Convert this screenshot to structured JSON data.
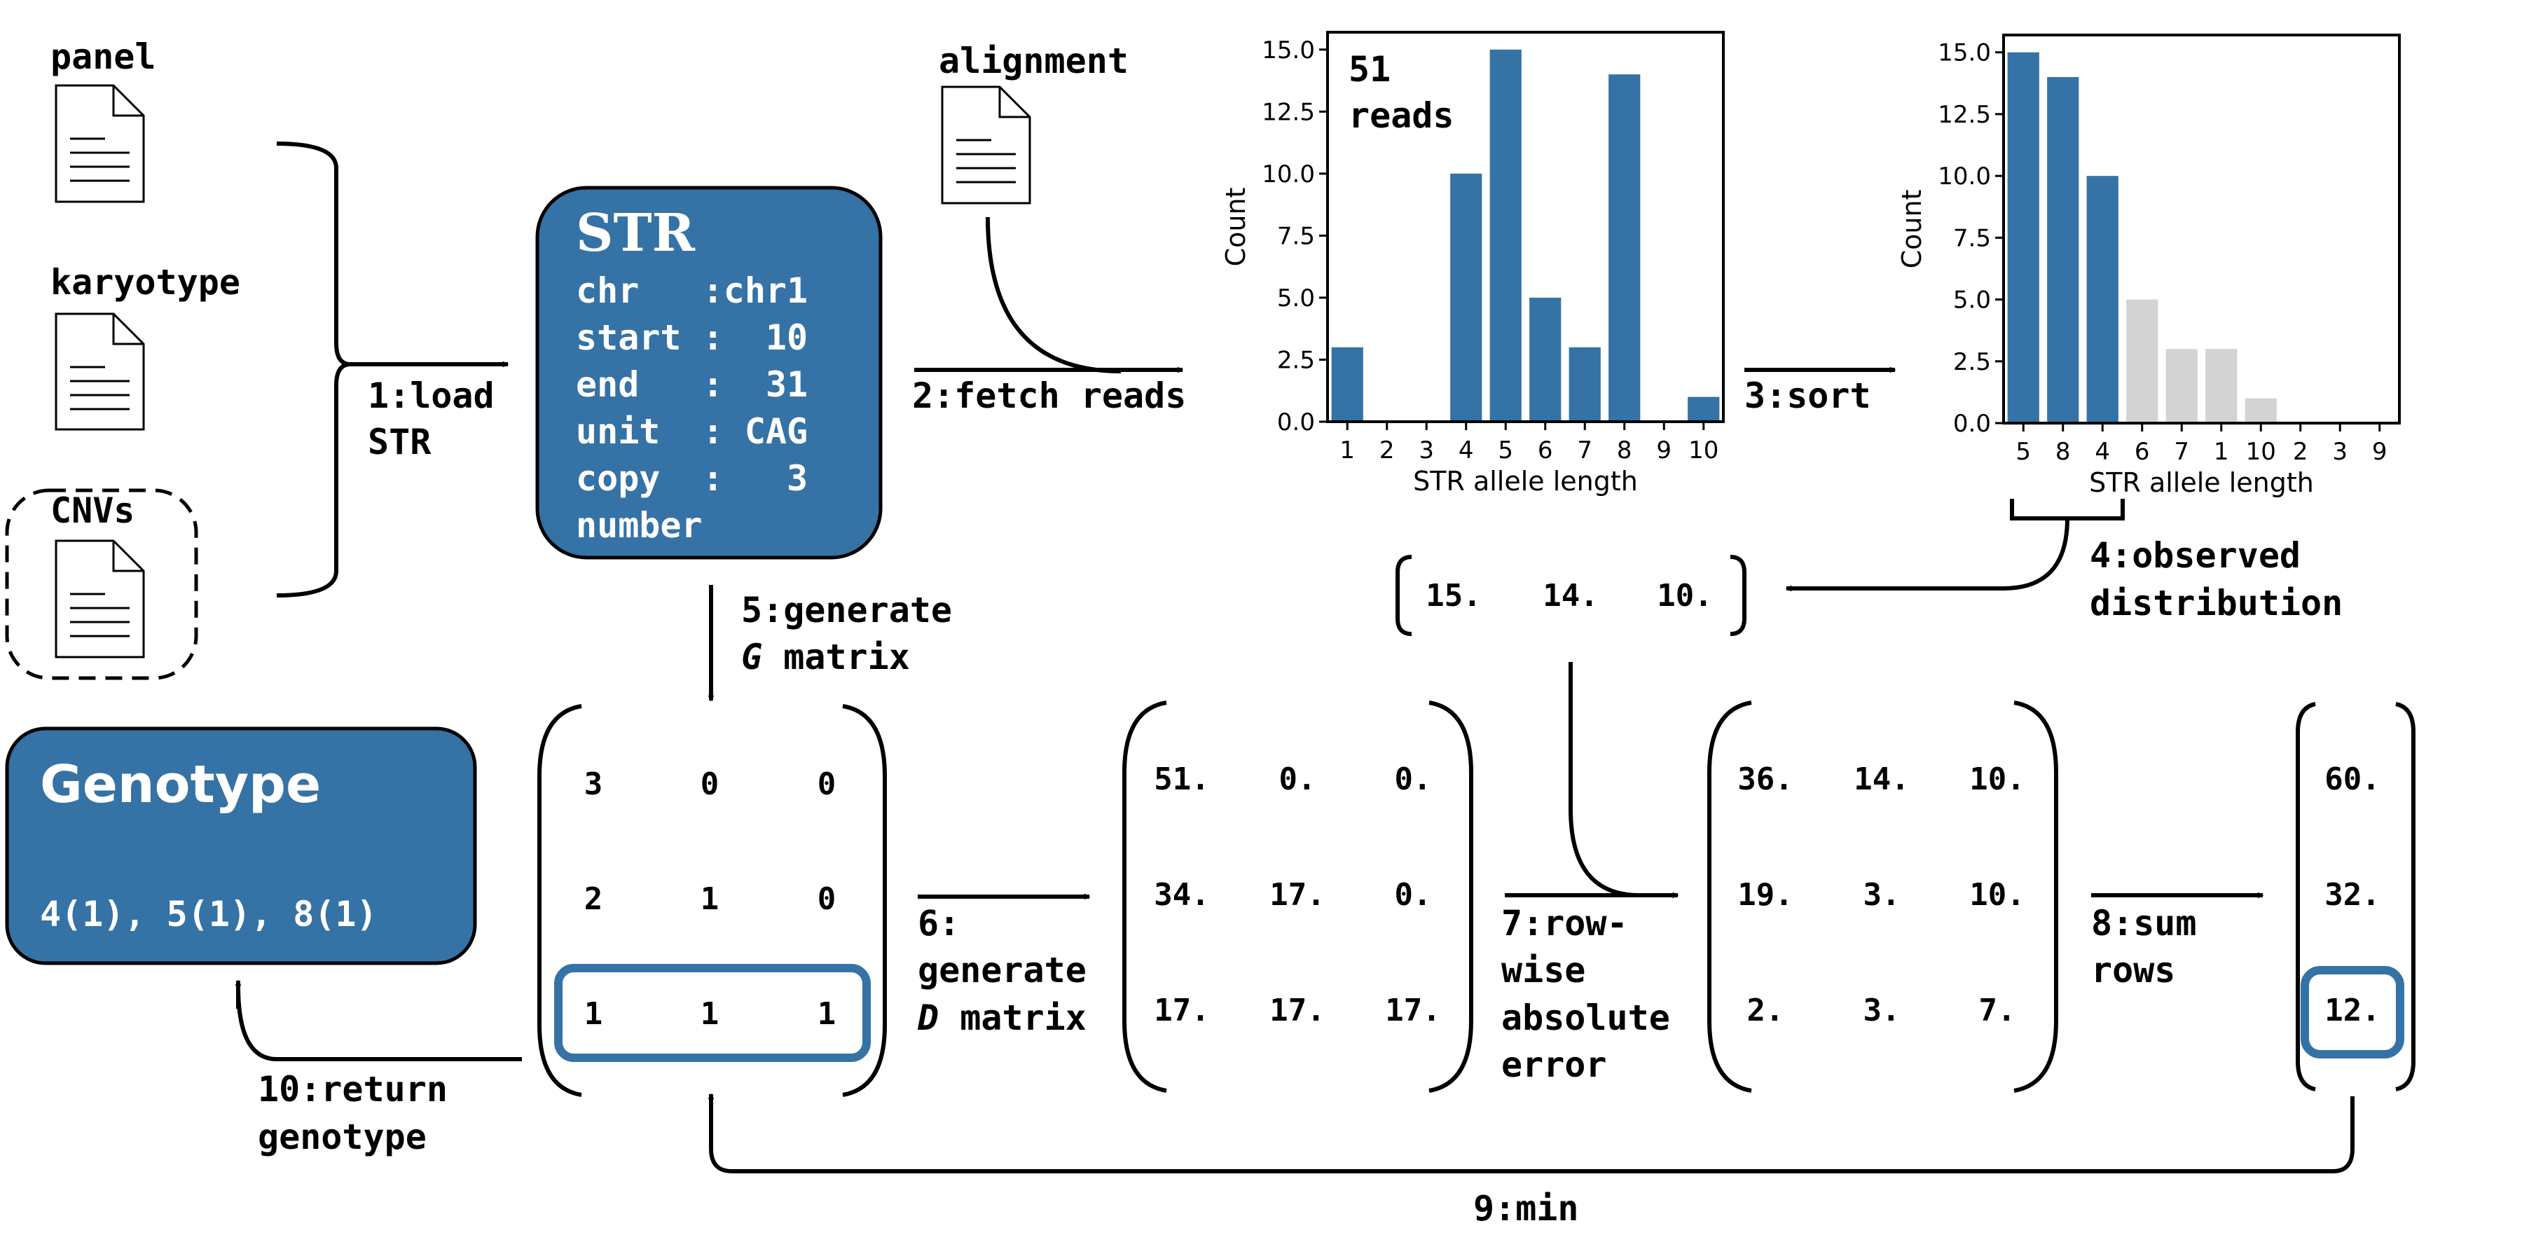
{
  "colors": {
    "accent": "#3572a5",
    "muted": "#d3d3d3",
    "ink": "#000000"
  },
  "inputs": {
    "panel": "panel",
    "karyotype": "karyotype",
    "cnvs": "CNVs",
    "alignment": "alignment"
  },
  "steps": {
    "s1a": "1:load",
    "s1b": "STR",
    "s2": "2:fetch reads",
    "s3": "3:sort",
    "s4a": "4:observed",
    "s4b": "distribution",
    "s5a": "5:generate",
    "s5b_var": "G",
    "s5b_rest": " matrix",
    "s6a": "6:",
    "s6b": "generate",
    "s6c_var": "D",
    "s6c_rest": " matrix",
    "s7a": "7:row-",
    "s7b": "wise",
    "s7c": "absolute",
    "s7d": "error",
    "s8a": "8:sum",
    "s8b": "rows",
    "s9": "9:min",
    "s10a": "10:return",
    "s10b": "genotype"
  },
  "str_box": {
    "title": "STR",
    "rows": [
      "chr   :chr1",
      "start :  10",
      "end   :  31",
      "unit  : CAG",
      "copy  :   3",
      "number"
    ]
  },
  "genotype_box": {
    "title": "Genotype",
    "value": "4(1), 5(1), 8(1)"
  },
  "observed_vector": [
    "15.",
    "14.",
    "10."
  ],
  "g_matrix": [
    [
      "3",
      "0",
      "0"
    ],
    [
      "2",
      "1",
      "0"
    ],
    [
      "1",
      "1",
      "1"
    ]
  ],
  "d_matrix": [
    [
      "51.",
      "0.",
      "0."
    ],
    [
      "34.",
      "17.",
      "0."
    ],
    [
      "17.",
      "17.",
      "17."
    ]
  ],
  "error_matrix": [
    [
      "36.",
      "14.",
      "10."
    ],
    [
      "19.",
      "3.",
      "10."
    ],
    [
      "2.",
      "3.",
      "7."
    ]
  ],
  "sum_vector": [
    "60.",
    "32.",
    "12."
  ],
  "chart_data": [
    {
      "type": "bar",
      "categories": [
        "1",
        "2",
        "3",
        "4",
        "5",
        "6",
        "7",
        "8",
        "9",
        "10"
      ],
      "values": [
        3,
        0,
        0,
        10,
        15,
        5,
        3,
        14,
        0,
        1
      ],
      "xlabel": "STR allele length",
      "ylabel": "Count",
      "ylim": [
        0,
        15.7
      ],
      "yticks": [
        "0.0",
        "2.5",
        "5.0",
        "7.5",
        "10.0",
        "12.5",
        "15.0"
      ],
      "annotation_line1": "51",
      "annotation_line2": "reads",
      "grid": false
    },
    {
      "type": "bar",
      "categories": [
        "5",
        "8",
        "4",
        "6",
        "7",
        "1",
        "10",
        "2",
        "3",
        "9"
      ],
      "values": [
        15,
        14,
        10,
        5,
        3,
        3,
        1,
        0,
        0,
        0
      ],
      "highlighted": [
        true,
        true,
        true,
        false,
        false,
        false,
        false,
        false,
        false,
        false
      ],
      "xlabel": "STR allele length",
      "ylabel": "Count",
      "ylim": [
        0,
        15.7
      ],
      "yticks": [
        "0.0",
        "2.5",
        "5.0",
        "7.5",
        "10.0",
        "12.5",
        "15.0"
      ],
      "grid": false
    }
  ]
}
